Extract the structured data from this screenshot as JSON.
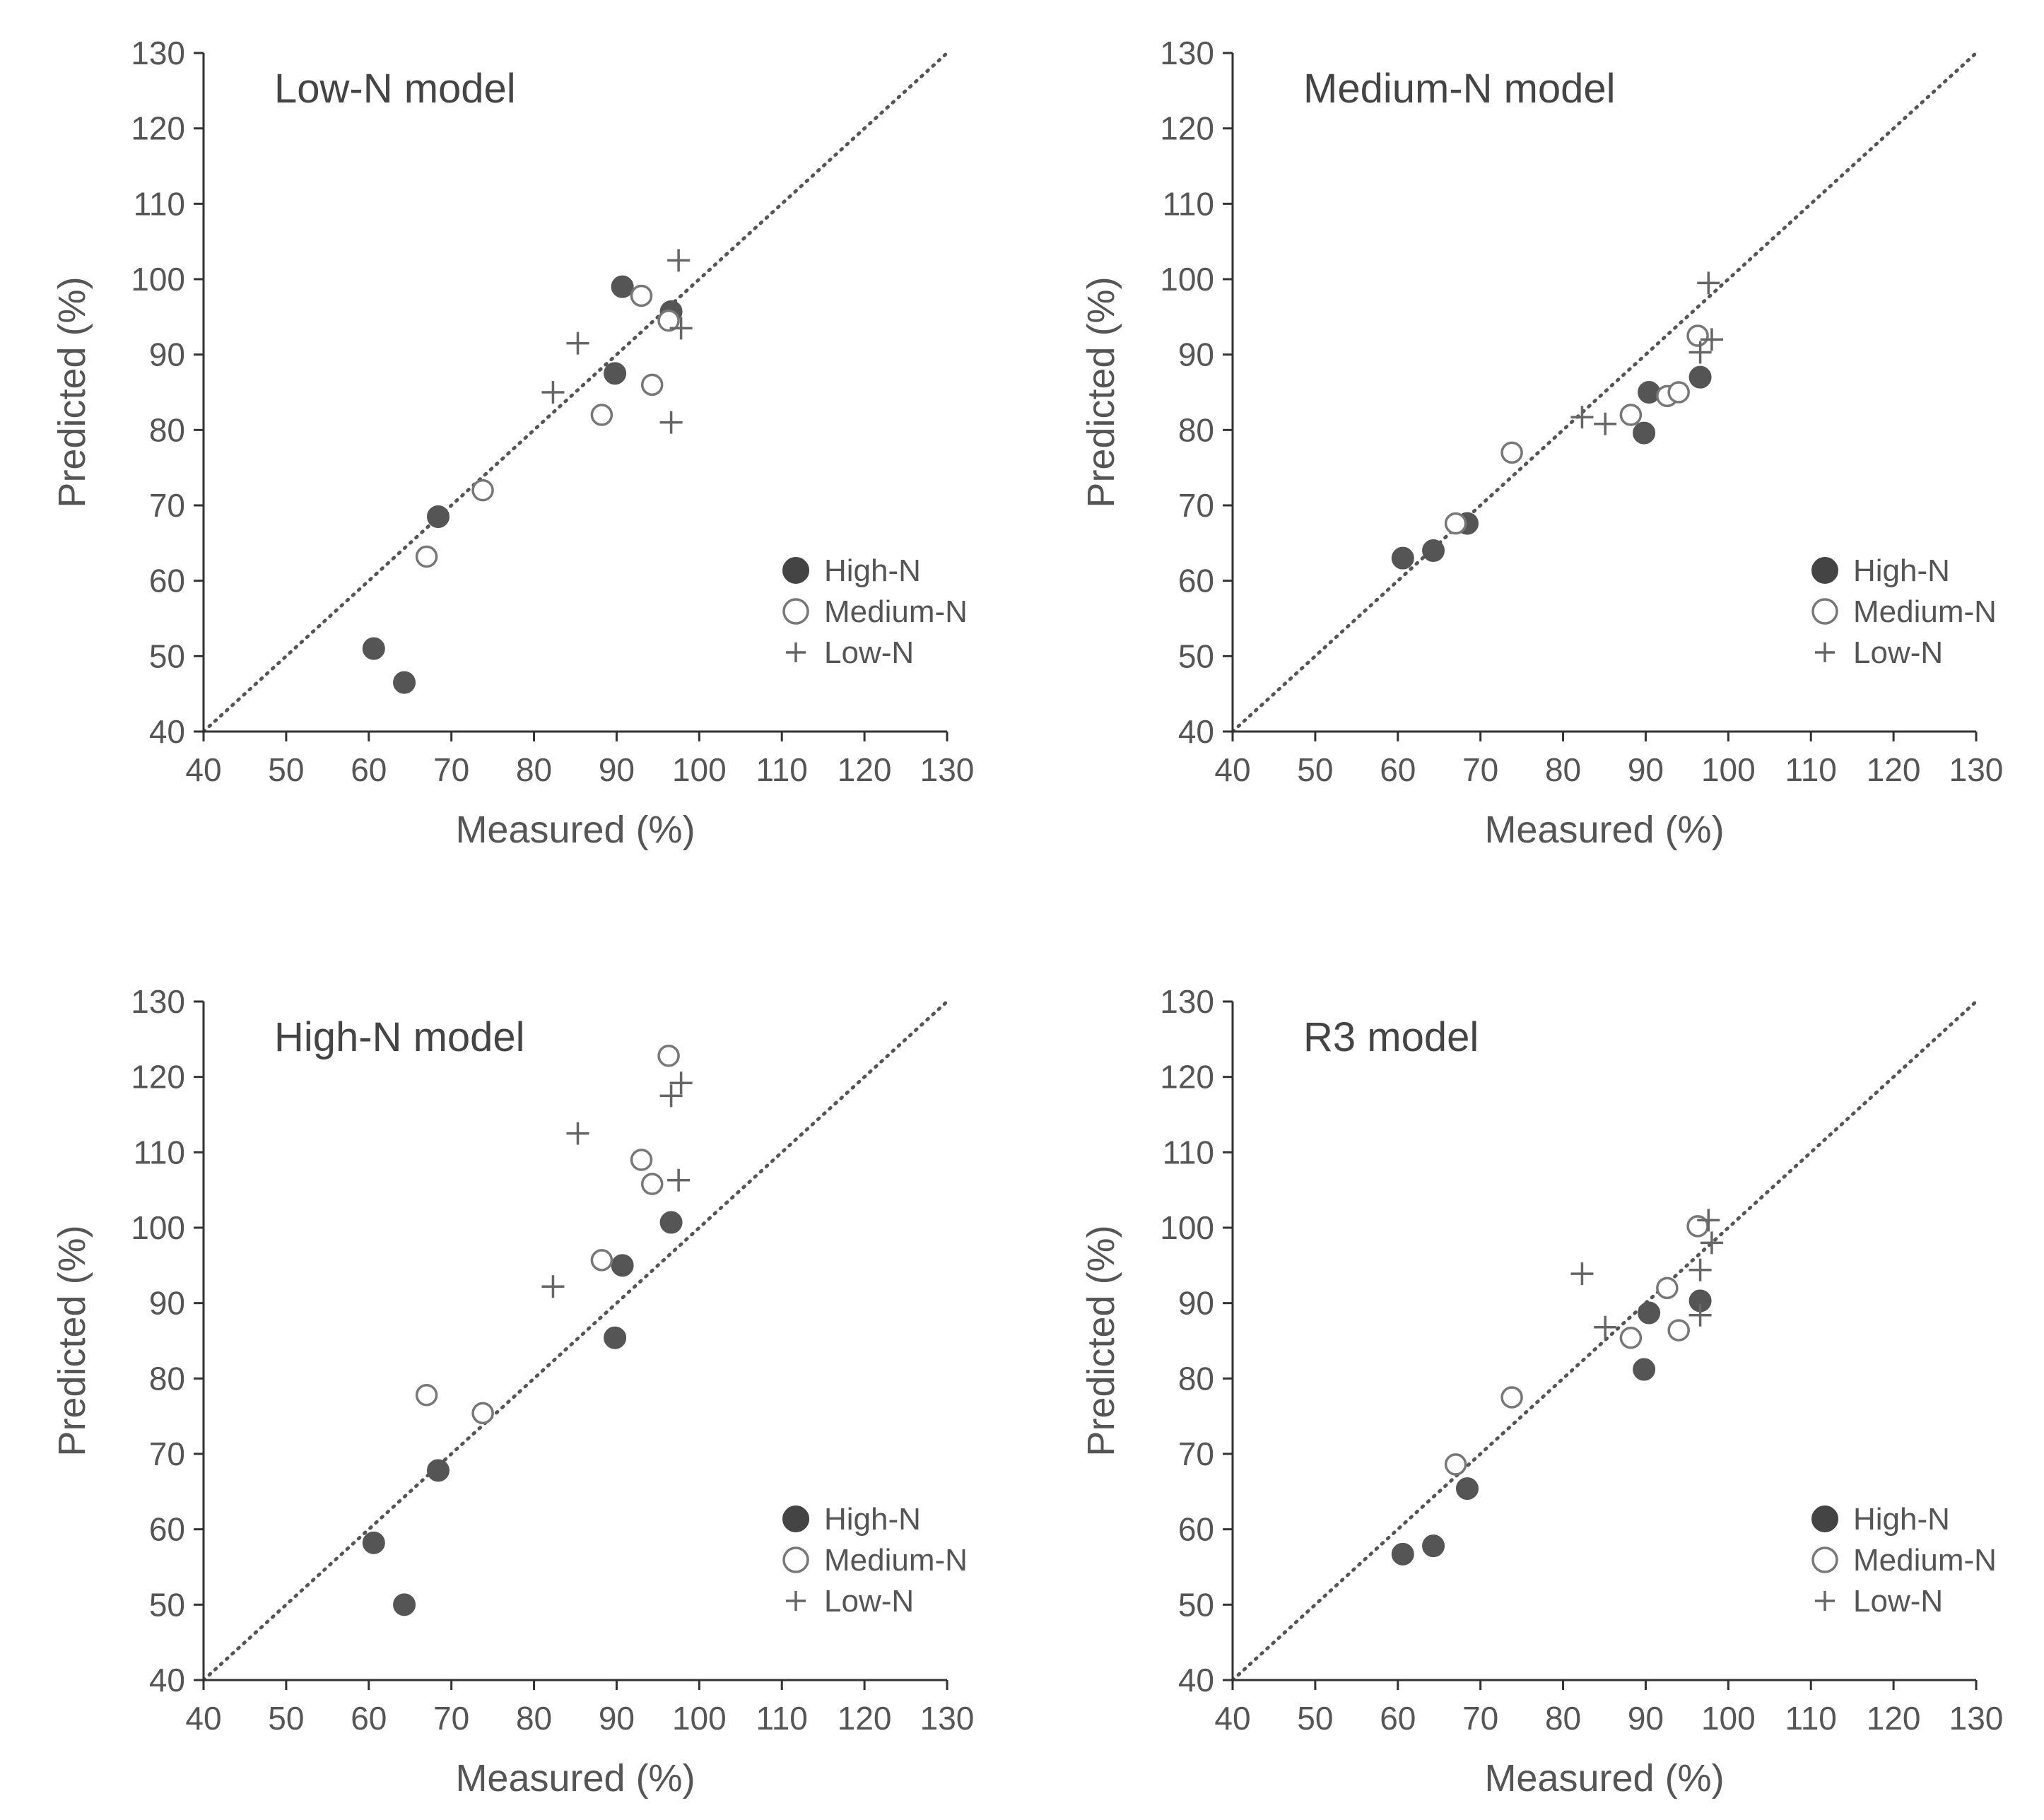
{
  "figure": {
    "series_styles": {
      "High-N": {
        "marker": "filled-circle",
        "color": "#555555"
      },
      "Medium-N": {
        "marker": "open-circle",
        "color": "#777777"
      },
      "Low-N": {
        "marker": "plus",
        "color": "#666666"
      }
    },
    "axis_color": "#333333",
    "text_color": "#555555"
  },
  "chart_data": [
    {
      "type": "scatter",
      "title": "Low-N model",
      "xlabel": "Measured (%)",
      "ylabel": "Predicted (%)",
      "xlim": [
        40,
        130
      ],
      "ylim": [
        40,
        130
      ],
      "xticks": [
        40,
        50,
        60,
        70,
        80,
        90,
        100,
        110,
        120,
        130
      ],
      "yticks": [
        40,
        50,
        60,
        70,
        80,
        90,
        100,
        110,
        120,
        130
      ],
      "reference_line": "1:1 dotted",
      "legend_position": "lower-right",
      "series": [
        {
          "name": "High-N",
          "points": [
            [
              60.6,
              51.0
            ],
            [
              64.3,
              46.5
            ],
            [
              68.4,
              68.5
            ],
            [
              89.8,
              87.5
            ],
            [
              90.7,
              99.0
            ],
            [
              96.6,
              95.7
            ]
          ]
        },
        {
          "name": "Medium-N",
          "points": [
            [
              67.0,
              63.2
            ],
            [
              73.8,
              72.0
            ],
            [
              88.2,
              82.0
            ],
            [
              93.0,
              97.8
            ],
            [
              94.3,
              86.0
            ],
            [
              96.3,
              94.5
            ]
          ]
        },
        {
          "name": "Low-N",
          "points": [
            [
              82.3,
              85.0
            ],
            [
              85.3,
              91.5
            ],
            [
              96.6,
              81.0
            ],
            [
              97.5,
              102.5
            ],
            [
              97.8,
              93.5
            ]
          ]
        }
      ]
    },
    {
      "type": "scatter",
      "title": "Medium-N model",
      "xlabel": "Measured (%)",
      "ylabel": "Predicted (%)",
      "xlim": [
        40,
        130
      ],
      "ylim": [
        40,
        130
      ],
      "xticks": [
        40,
        50,
        60,
        70,
        80,
        90,
        100,
        110,
        120,
        130
      ],
      "yticks": [
        40,
        50,
        60,
        70,
        80,
        90,
        100,
        110,
        120,
        130
      ],
      "reference_line": "1:1 dotted",
      "legend_position": "lower-right",
      "series": [
        {
          "name": "High-N",
          "points": [
            [
              60.6,
              63.0
            ],
            [
              64.3,
              64.0
            ],
            [
              68.4,
              67.6
            ],
            [
              89.8,
              79.6
            ],
            [
              90.4,
              85.0
            ],
            [
              96.6,
              87.0
            ]
          ]
        },
        {
          "name": "Medium-N",
          "points": [
            [
              67.0,
              67.6
            ],
            [
              73.8,
              77.0
            ],
            [
              88.2,
              82.0
            ],
            [
              92.6,
              84.5
            ],
            [
              94.0,
              85.0
            ],
            [
              96.3,
              92.5
            ]
          ]
        },
        {
          "name": "Low-N",
          "points": [
            [
              82.3,
              81.7
            ],
            [
              85.1,
              80.8
            ],
            [
              96.6,
              90.3
            ],
            [
              97.6,
              99.5
            ],
            [
              98.0,
              92.0
            ]
          ]
        }
      ]
    },
    {
      "type": "scatter",
      "title": "High-N model",
      "xlabel": "Measured (%)",
      "ylabel": "Predicted (%)",
      "xlim": [
        40,
        130
      ],
      "ylim": [
        40,
        130
      ],
      "xticks": [
        40,
        50,
        60,
        70,
        80,
        90,
        100,
        110,
        120,
        130
      ],
      "yticks": [
        40,
        50,
        60,
        70,
        80,
        90,
        100,
        110,
        120,
        130
      ],
      "reference_line": "1:1 dotted",
      "legend_position": "lower-right",
      "series": [
        {
          "name": "High-N",
          "points": [
            [
              60.6,
              58.2
            ],
            [
              64.3,
              50.0
            ],
            [
              68.4,
              67.8
            ],
            [
              89.8,
              85.4
            ],
            [
              90.7,
              95.0
            ],
            [
              96.6,
              100.7
            ]
          ]
        },
        {
          "name": "Medium-N",
          "points": [
            [
              67.0,
              77.8
            ],
            [
              73.8,
              75.4
            ],
            [
              88.2,
              95.7
            ],
            [
              93.0,
              109.0
            ],
            [
              94.3,
              105.8
            ],
            [
              96.3,
              122.8
            ]
          ]
        },
        {
          "name": "Low-N",
          "points": [
            [
              82.3,
              92.2
            ],
            [
              85.3,
              112.5
            ],
            [
              96.6,
              117.5
            ],
            [
              97.5,
              106.3
            ],
            [
              97.8,
              119.2
            ]
          ]
        }
      ]
    },
    {
      "type": "scatter",
      "title": "R3 model",
      "xlabel": "Measured (%)",
      "ylabel": "Predicted (%)",
      "xlim": [
        40,
        130
      ],
      "ylim": [
        40,
        130
      ],
      "xticks": [
        40,
        50,
        60,
        70,
        80,
        90,
        100,
        110,
        120,
        130
      ],
      "yticks": [
        40,
        50,
        60,
        70,
        80,
        90,
        100,
        110,
        120,
        130
      ],
      "reference_line": "1:1 dotted",
      "legend_position": "lower-right",
      "series": [
        {
          "name": "High-N",
          "points": [
            [
              60.6,
              56.7
            ],
            [
              64.3,
              57.8
            ],
            [
              68.4,
              65.4
            ],
            [
              89.8,
              81.2
            ],
            [
              90.4,
              88.7
            ],
            [
              96.6,
              90.3
            ]
          ]
        },
        {
          "name": "Medium-N",
          "points": [
            [
              67.0,
              68.6
            ],
            [
              73.8,
              77.5
            ],
            [
              88.2,
              85.4
            ],
            [
              92.6,
              92.0
            ],
            [
              94.0,
              86.4
            ],
            [
              96.3,
              100.2
            ]
          ]
        },
        {
          "name": "Low-N",
          "points": [
            [
              82.3,
              93.9
            ],
            [
              85.1,
              86.8
            ],
            [
              96.6,
              94.4
            ],
            [
              96.6,
              88.4
            ],
            [
              97.6,
              101.0
            ],
            [
              98.0,
              98.0
            ]
          ]
        }
      ]
    }
  ]
}
